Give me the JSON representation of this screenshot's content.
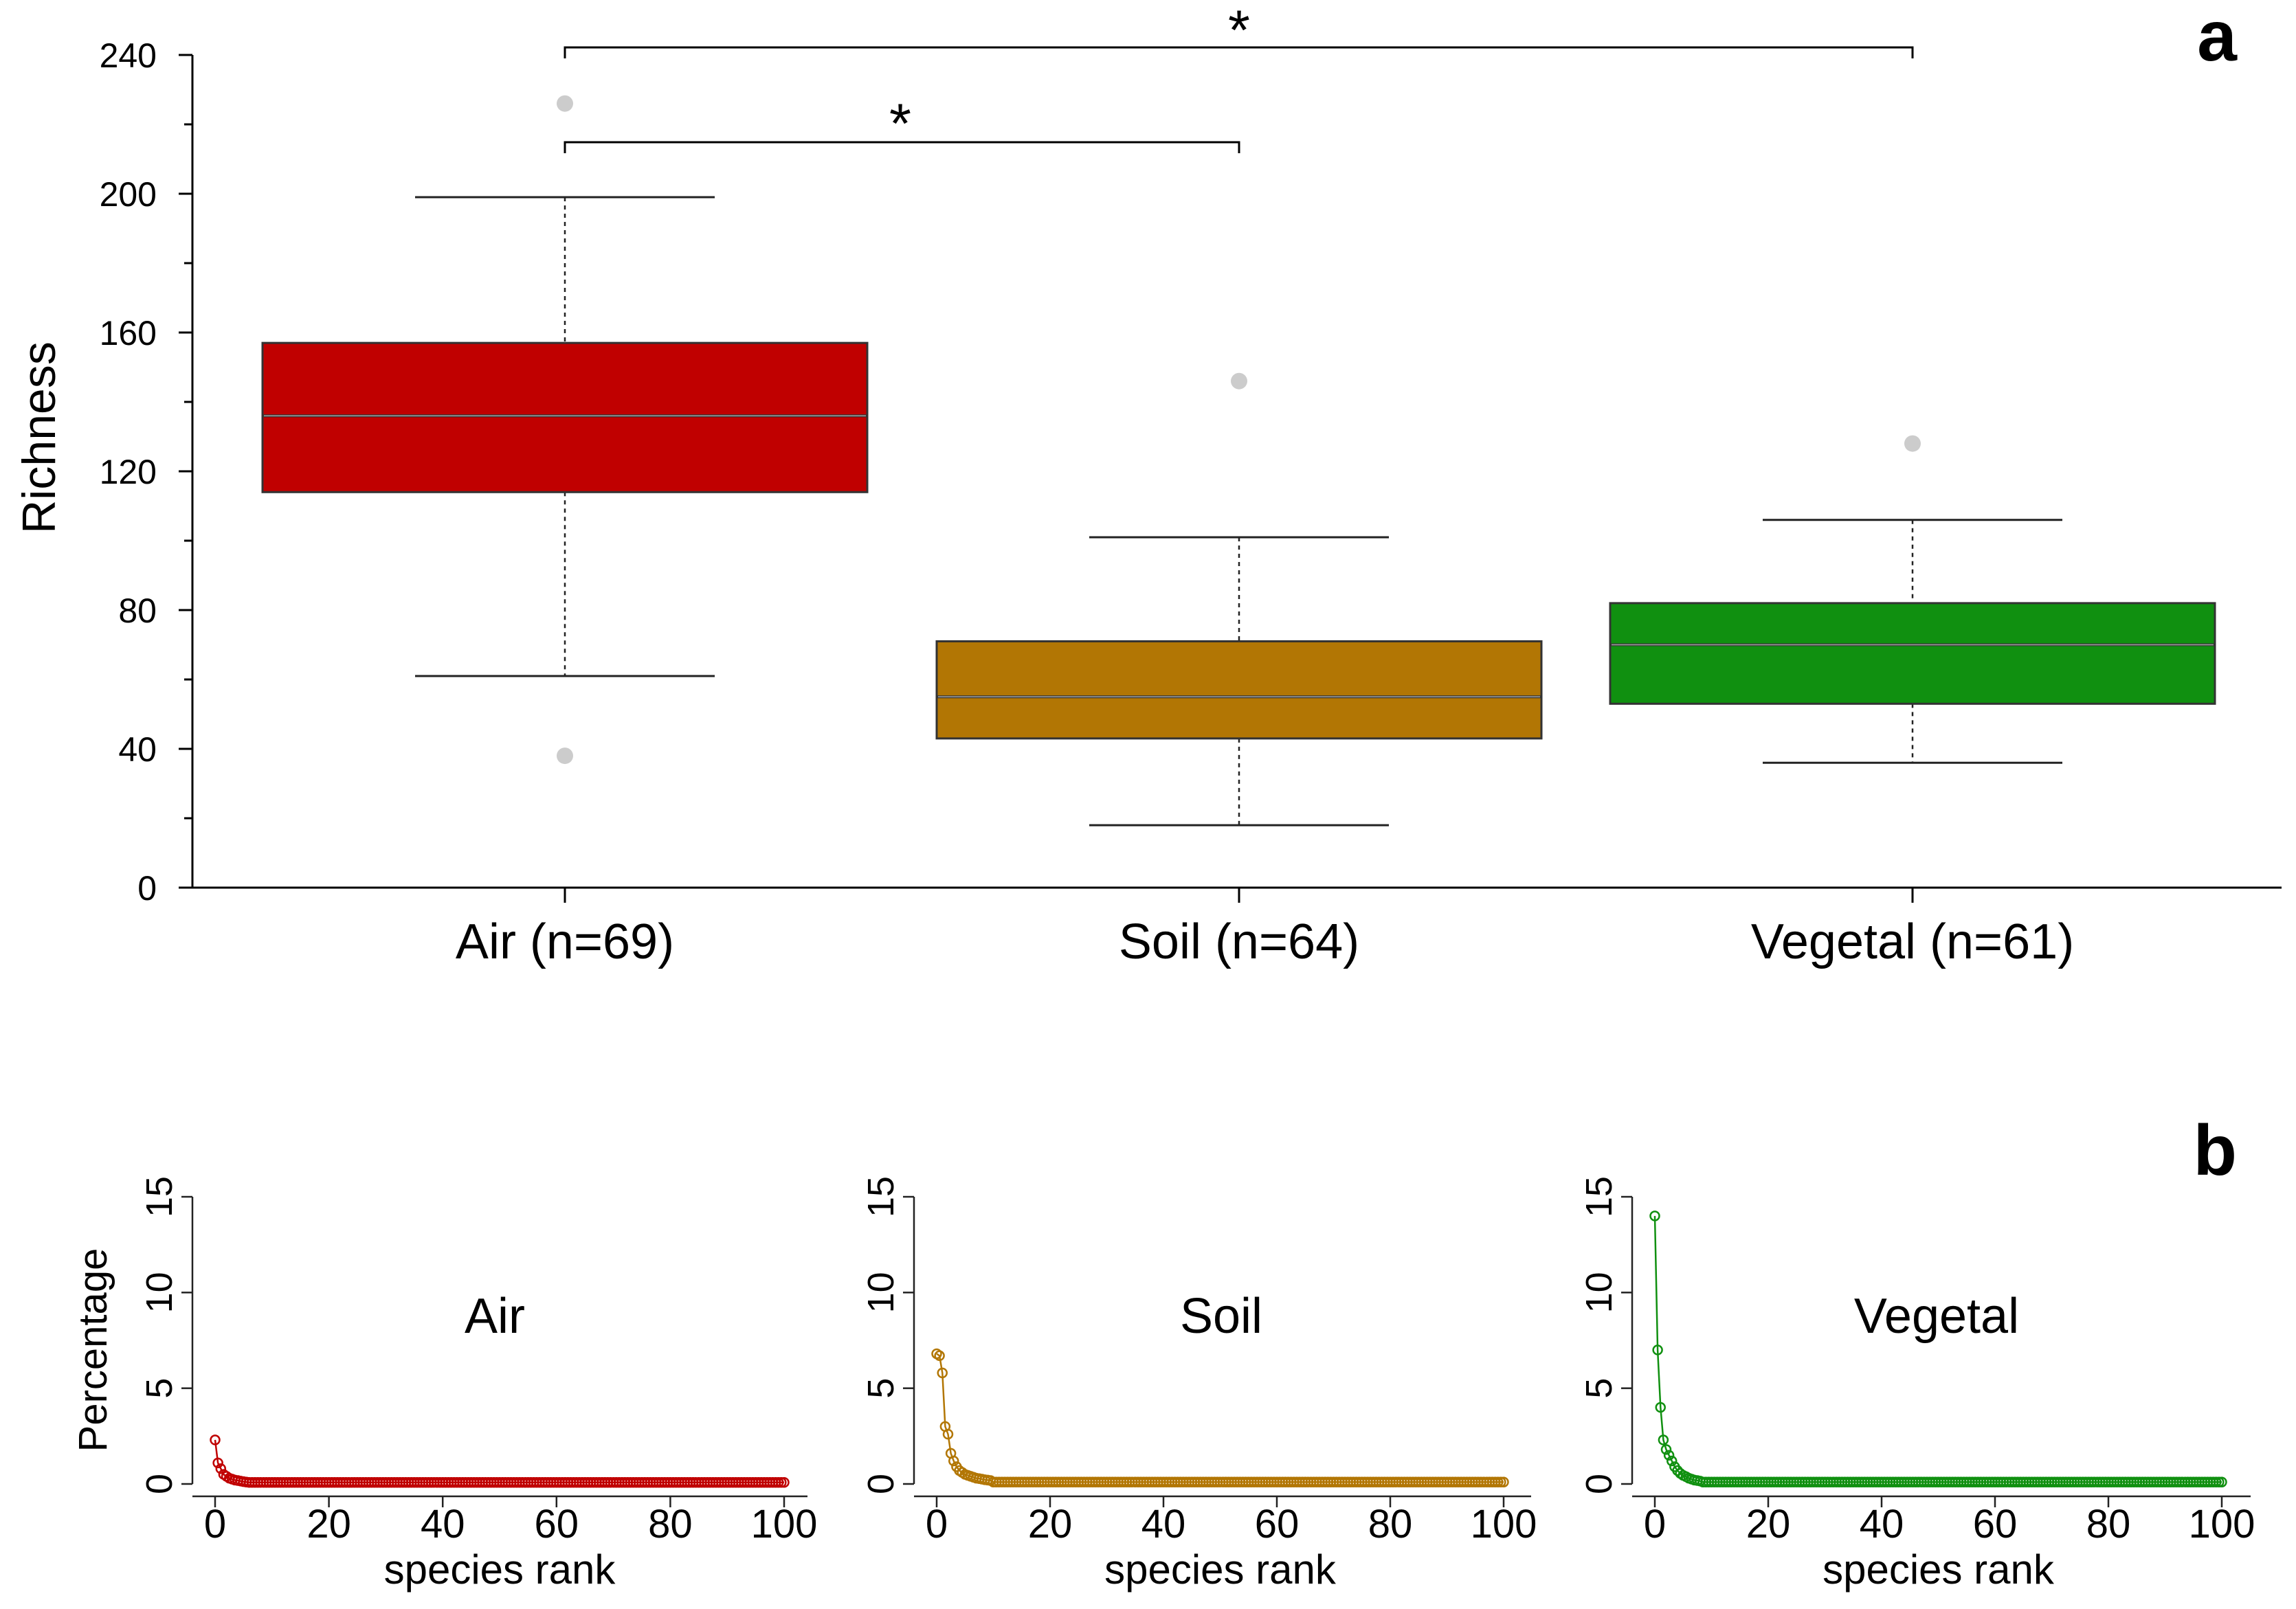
{
  "panel_a": {
    "letter": "a",
    "ylabel": "Richness",
    "significance_mark": "*",
    "chart_data": {
      "type": "box",
      "ylabel": "Richness",
      "ylim": [
        0,
        240
      ],
      "yticks": [
        0,
        40,
        80,
        120,
        160,
        200,
        240
      ],
      "categories": [
        "Air (n=69)",
        "Soil (n=64)",
        "Vegetal (n=61)"
      ],
      "series": [
        {
          "name": "Air",
          "n": 69,
          "color": "#c00000",
          "whisker_low": 61,
          "q1": 114,
          "median": 136,
          "q3": 157,
          "whisker_high": 199,
          "outliers": [
            226,
            38
          ]
        },
        {
          "name": "Soil",
          "n": 64,
          "color": "#b27604",
          "whisker_low": 18,
          "q1": 43,
          "median": 55,
          "q3": 71,
          "whisker_high": 101,
          "outliers": [
            146
          ]
        },
        {
          "name": "Vegetal",
          "n": 61,
          "color": "#109010",
          "whisker_low": 36,
          "q1": 53,
          "median": 70,
          "q3": 82,
          "whisker_high": 106,
          "outliers": [
            128
          ]
        }
      ],
      "comparisons": [
        {
          "from": "Air",
          "to": "Soil",
          "label": "*"
        },
        {
          "from": "Air",
          "to": "Vegetal",
          "label": "*"
        }
      ]
    }
  },
  "panel_b": {
    "letter": "b",
    "ylabel": "Percentage",
    "xlabel": "species rank",
    "chart_data": [
      {
        "type": "line",
        "title": "Air",
        "color": "#c00000",
        "xlabel": "species rank",
        "ylabel": "Percentage",
        "xlim": [
          0,
          100
        ],
        "ylim": [
          0,
          15
        ],
        "xticks": [
          0,
          20,
          40,
          60,
          80,
          100
        ],
        "yticks": [
          0,
          5,
          10,
          15
        ],
        "head": [
          2.3,
          1.1,
          0.8,
          0.5,
          0.4,
          0.3,
          0.25,
          0.2,
          0.18,
          0.15,
          0.12,
          0.1
        ],
        "tail": 0.08
      },
      {
        "type": "line",
        "title": "Soil",
        "color": "#b27604",
        "xlabel": "species rank",
        "ylabel": "Percentage",
        "xlim": [
          0,
          100
        ],
        "ylim": [
          0,
          15
        ],
        "xticks": [
          0,
          20,
          40,
          60,
          80,
          100
        ],
        "yticks": [
          0,
          5,
          10,
          15
        ],
        "head": [
          6.8,
          6.7,
          5.8,
          3.0,
          2.6,
          1.6,
          1.2,
          0.9,
          0.7,
          0.6,
          0.5,
          0.45,
          0.4,
          0.35,
          0.3,
          0.28,
          0.25,
          0.22,
          0.2,
          0.18
        ],
        "tail": 0.1
      },
      {
        "type": "line",
        "title": "Vegetal",
        "color": "#109010",
        "xlabel": "species rank",
        "ylabel": "Percentage",
        "xlim": [
          0,
          100
        ],
        "ylim": [
          0,
          15
        ],
        "xticks": [
          0,
          20,
          40,
          60,
          80,
          100
        ],
        "yticks": [
          0,
          5,
          10,
          15
        ],
        "head": [
          14.0,
          7.0,
          4.0,
          2.3,
          1.8,
          1.5,
          1.2,
          0.9,
          0.7,
          0.55,
          0.45,
          0.38,
          0.3,
          0.25,
          0.2,
          0.18,
          0.15
        ],
        "tail": 0.1
      }
    ]
  }
}
